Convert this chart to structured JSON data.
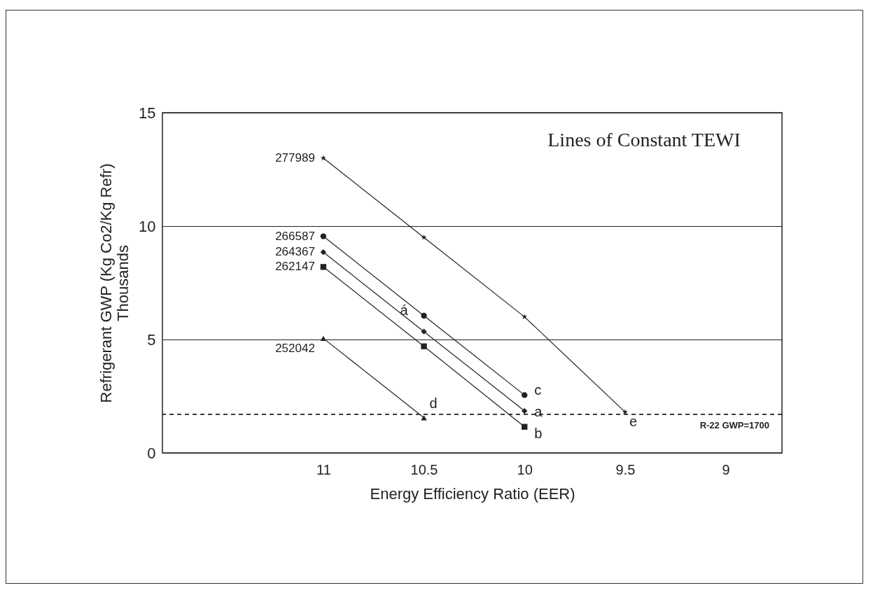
{
  "chart_data": {
    "type": "line",
    "title": "Lines of Constant TEWI",
    "xlabel": "Energy Efficiency Ratio (EER)",
    "ylabel": "Refrigerant GWP (Kg Co2/Kg Refr)\nThousands",
    "xlim": [
      11.8,
      8.72
    ],
    "xticks": [
      11,
      10.5,
      10,
      9.5,
      9
    ],
    "ylim": [
      0,
      15
    ],
    "yticks": [
      0,
      5,
      10,
      15
    ],
    "grid": "y",
    "series": [
      {
        "name": "277989",
        "color": "#222222",
        "marker": "star",
        "x": [
          11,
          10.5,
          10,
          9.5
        ],
        "values": [
          13.0,
          9.5,
          6.0,
          1.8
        ]
      },
      {
        "name": "266587",
        "color": "#222222",
        "marker": "circle",
        "x": [
          11,
          10.5,
          10
        ],
        "values": [
          9.55,
          6.05,
          2.55
        ]
      },
      {
        "name": "264367",
        "color": "#222222",
        "marker": "diamond",
        "x": [
          11,
          10.5,
          10
        ],
        "values": [
          8.85,
          5.35,
          1.85
        ]
      },
      {
        "name": "262147",
        "color": "#222222",
        "marker": "square",
        "x": [
          11,
          10.5,
          10
        ],
        "values": [
          8.2,
          4.7,
          1.15
        ]
      },
      {
        "name": "252042",
        "color": "#222222",
        "marker": "triangle",
        "x": [
          11,
          10.5
        ],
        "values": [
          5.05,
          1.55
        ]
      }
    ],
    "annotations": [
      {
        "text": "á",
        "x": 10.5,
        "y": 5.35
      },
      {
        "text": "c",
        "x": 10,
        "y": 2.55
      },
      {
        "text": "a",
        "x": 10,
        "y": 1.85
      },
      {
        "text": "b",
        "x": 10,
        "y": 1.15
      },
      {
        "text": "d",
        "x": 10.5,
        "y": 1.55
      },
      {
        "text": "e",
        "x": 9.5,
        "y": 1.8
      }
    ],
    "ref_lines": [
      {
        "axis": "y",
        "value": 1.7,
        "label": "R-22 GWP=1700",
        "color": "#222222",
        "line_style": "dashed"
      }
    ]
  }
}
